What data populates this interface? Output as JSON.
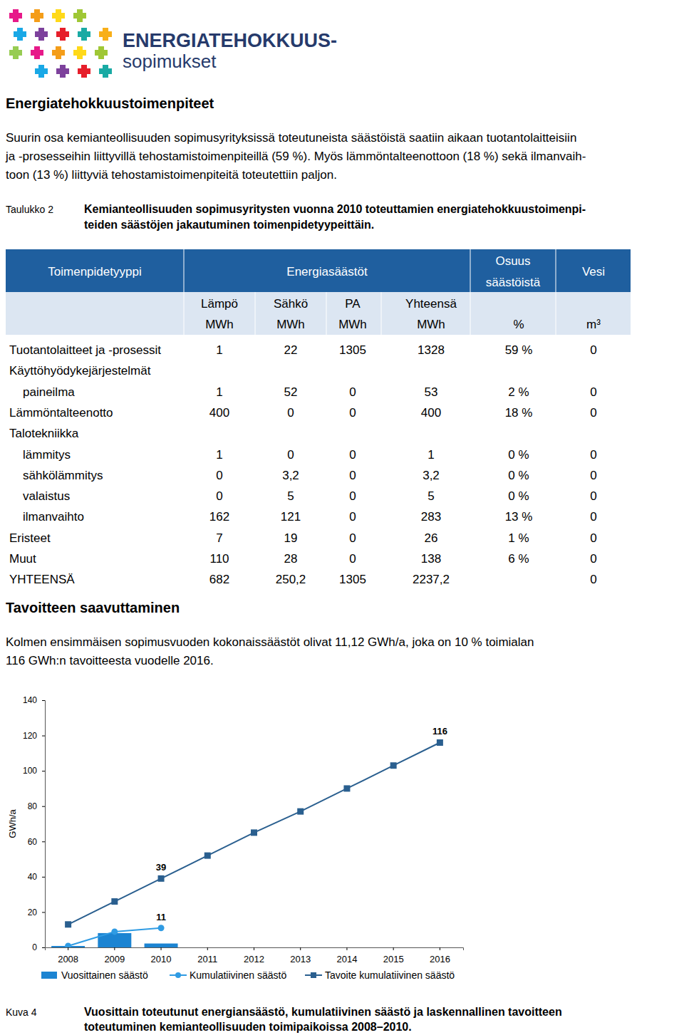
{
  "logo": {
    "title": "ENERGIATEHOKKUUS-",
    "subtitle": "sopimukset"
  },
  "heading": "Energiatehokkuustoimenpiteet",
  "paragraph": [
    "Suurin osa kemianteollisuuden sopimusyrityksissä toteutuneista säästöistä saatiin aikaan tuotantolaitteisiin",
    "ja -prosesseihin liittyvillä tehostamistoimenpiteillä (59 %). Myös lämmöntalteenottoon (18 %) sekä ilmanvaih-",
    "toon (13 %) liittyviä tehostamistoimenpiteitä toteutettiin paljon."
  ],
  "table_caption": {
    "label": "Taulukko 2",
    "title": [
      "Kemianteollisuuden sopimusyritysten vuonna 2010 toteuttamien energiatehokkuustoimenpi-",
      "teiden säästöjen jakautuminen toimenpidetyypeittäin."
    ]
  },
  "table": {
    "header": [
      "Toimenpidetyyppi",
      "Energiasäästöt",
      "Osuus säästöistä",
      "Vesi"
    ],
    "subheader": [
      "Lämpö",
      "Sähkö",
      "PA",
      "Yhteensä"
    ],
    "units": [
      "MWh",
      "MWh",
      "MWh",
      "MWh",
      "%",
      "m³"
    ],
    "rows": [
      {
        "label": "Tuotantolaitteet ja -prosessit",
        "cells": [
          "1",
          "22",
          "1305",
          "1328",
          "59 %",
          "0"
        ]
      },
      {
        "label": "Käyttöhyödykejärjestelmät",
        "children": [
          {
            "label": "paineilma",
            "cells": [
              "1",
              "52",
              "0",
              "53",
              "2 %",
              "0"
            ]
          }
        ]
      },
      {
        "label": "Lämmöntalteenotto",
        "cells": [
          "400",
          "0",
          "0",
          "400",
          "18 %",
          "0"
        ]
      },
      {
        "label": "Talotekniikka",
        "children": [
          {
            "label": "lämmitys",
            "cells": [
              "1",
              "0",
              "0",
              "1",
              "0 %",
              "0"
            ]
          },
          {
            "label": "sähkölämmitys",
            "cells": [
              "0",
              "3,2",
              "0",
              "3,2",
              "0 %",
              "0"
            ]
          },
          {
            "label": "valaistus",
            "cells": [
              "0",
              "5",
              "0",
              "5",
              "0 %",
              "0"
            ]
          },
          {
            "label": "ilmanvaihto",
            "cells": [
              "162",
              "121",
              "0",
              "283",
              "13 %",
              "0"
            ]
          }
        ]
      },
      {
        "label": "Eristeet",
        "cells": [
          "7",
          "19",
          "0",
          "26",
          "1 %",
          "0"
        ]
      },
      {
        "label": "Muut",
        "cells": [
          "110",
          "28",
          "0",
          "138",
          "6 %",
          "0"
        ]
      },
      {
        "label": "YHTEENSÄ",
        "cells": [
          "682",
          "250,2",
          "1305",
          "2237,2",
          null,
          "0"
        ]
      }
    ]
  },
  "section_heading": "Tavoitteen saavuttaminen",
  "section_paragraph": [
    "Kolmen ensimmäisen sopimusvuoden kokonaissäästöt olivat 11,12 GWh/a, joka on 10 % toimialan",
    "116 GWh:n tavoitteesta vuodelle 2016."
  ],
  "chart_data": {
    "type": "bar",
    "y_label": "GWh/a",
    "categories": [
      "2008",
      "2009",
      "2010",
      "2011",
      "2012",
      "2013",
      "2014",
      "2015",
      "2016"
    ],
    "ylim": [
      0,
      140
    ],
    "yticks": [
      0,
      20,
      40,
      60,
      80,
      100,
      120,
      140
    ],
    "grid": false,
    "legend": "bottom",
    "series": [
      {
        "name": "Vuosittainen säästö",
        "type": "bar",
        "color": "#1c84d2",
        "values": [
          0.8,
          8.1,
          2.2,
          null,
          null,
          null,
          null,
          null,
          null
        ]
      },
      {
        "name": "Kumulatiivinen säästö",
        "type": "line",
        "color": "#2f9be3",
        "marker": "circle",
        "data_labels": true,
        "values": [
          0.8,
          8.9,
          11,
          null,
          null,
          null,
          null,
          null,
          null
        ],
        "value_labels": [
          null,
          null,
          "11",
          null,
          null,
          null,
          null,
          null,
          null
        ]
      },
      {
        "name": "Tavoite kumulatiivinen säästö",
        "type": "line",
        "color": "#2a5f8f",
        "marker": "square",
        "data_labels": true,
        "values": [
          13,
          26,
          39,
          52,
          65,
          77,
          90,
          103,
          116
        ],
        "value_labels": [
          null,
          null,
          "39",
          null,
          null,
          null,
          null,
          null,
          "116"
        ]
      }
    ]
  },
  "figure_caption": {
    "label": "Kuva 4",
    "title": [
      "Vuosittain toteutunut energiansäästö, kumulatiivinen säästö ja laskennallinen tavoitteen",
      "toteutuminen kemianteollisuuden toimipaikoissa 2008–2010."
    ]
  }
}
